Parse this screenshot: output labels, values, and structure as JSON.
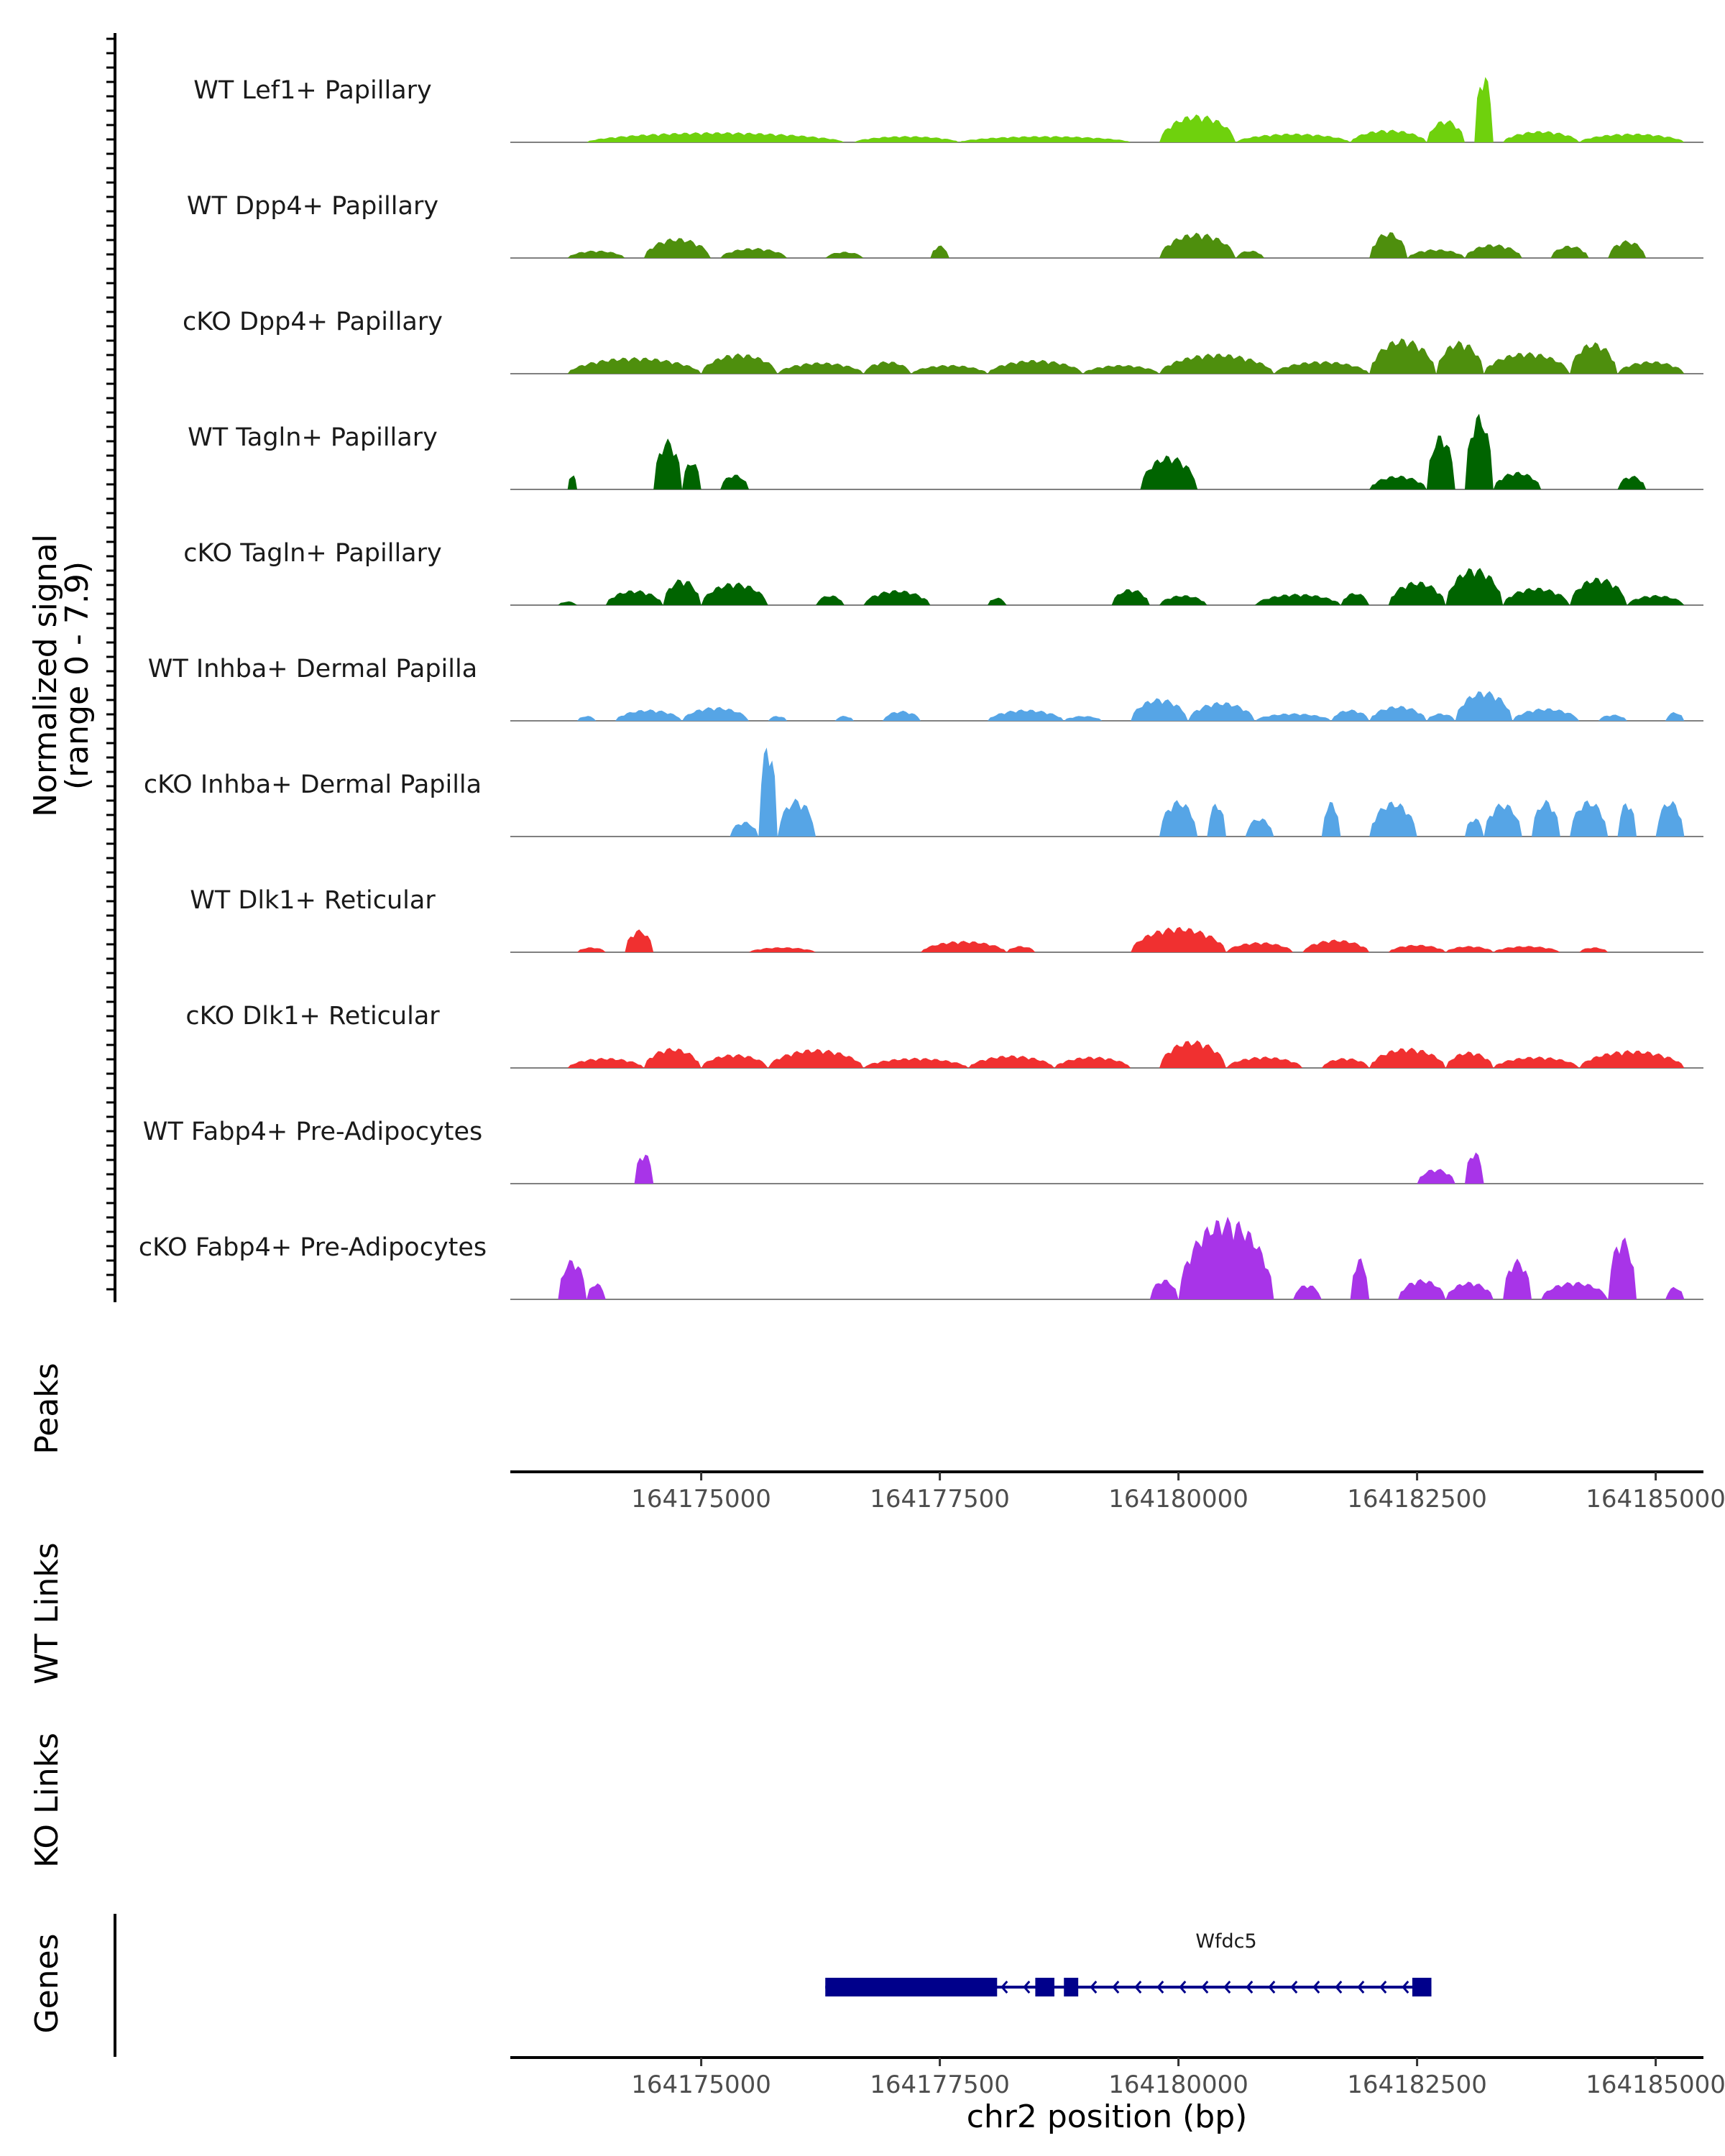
{
  "chart_data": {
    "type": "area",
    "region": "chr2",
    "y_axis_title": [
      "Normalized signal",
      "(range 0 - 7.9)"
    ],
    "ylim": [
      0,
      7.9
    ],
    "xlim": [
      164173000,
      164185500
    ],
    "x_ticks": [
      164175000,
      164177500,
      164180000,
      164182500,
      164185000
    ],
    "x_tick_labels": [
      "164175000",
      "164177500",
      "164180000",
      "164182500",
      "164185000"
    ],
    "x_label": "chr2 position (bp)",
    "series": [
      {
        "name": "WT Lef1+ Papillary",
        "color": "#6fd10d",
        "peaks": [
          [
            164173800,
            164176500,
            0.8
          ],
          [
            164176600,
            164177700,
            0.5
          ],
          [
            164177700,
            164179500,
            0.5
          ],
          [
            164179800,
            164180600,
            2.2
          ],
          [
            164180600,
            164181800,
            0.7
          ],
          [
            164181800,
            164182600,
            1.0
          ],
          [
            164182600,
            164183000,
            1.8
          ],
          [
            164183100,
            164183300,
            5.5
          ],
          [
            164183400,
            164184200,
            0.9
          ],
          [
            164184200,
            164185300,
            0.7
          ]
        ]
      },
      {
        "name": "WT Dpp4+ Papillary",
        "color": "#4e8f0d",
        "peaks": [
          [
            164173600,
            164174200,
            0.6
          ],
          [
            164174400,
            164175100,
            1.6
          ],
          [
            164175200,
            164175900,
            0.8
          ],
          [
            164176300,
            164176700,
            0.5
          ],
          [
            164177400,
            164177600,
            1.0
          ],
          [
            164179800,
            164180600,
            2.0
          ],
          [
            164180600,
            164180900,
            0.6
          ],
          [
            164182000,
            164182400,
            2.1
          ],
          [
            164182400,
            164183000,
            0.7
          ],
          [
            164183000,
            164183600,
            1.1
          ],
          [
            164183900,
            164184300,
            1.0
          ],
          [
            164184500,
            164184900,
            1.4
          ]
        ]
      },
      {
        "name": "cKO Dpp4+ Papillary",
        "color": "#4e8f0d",
        "peaks": [
          [
            164173600,
            164175000,
            1.3
          ],
          [
            164175000,
            164175800,
            1.6
          ],
          [
            164175800,
            164176700,
            0.9
          ],
          [
            164176700,
            164177200,
            1.0
          ],
          [
            164177200,
            164178000,
            0.7
          ],
          [
            164178000,
            164179000,
            1.1
          ],
          [
            164179000,
            164179800,
            0.7
          ],
          [
            164179800,
            164181000,
            1.6
          ],
          [
            164181000,
            164182000,
            1.0
          ],
          [
            164182000,
            164182700,
            2.8
          ],
          [
            164182700,
            164183200,
            2.6
          ],
          [
            164183200,
            164184100,
            1.7
          ],
          [
            164184100,
            164184600,
            2.5
          ],
          [
            164184600,
            164185300,
            1.0
          ]
        ]
      },
      {
        "name": "WT Tagln+ Papillary",
        "color": "#006400",
        "peaks": [
          [
            164173600,
            164173700,
            1.2
          ],
          [
            164174500,
            164174800,
            4.0
          ],
          [
            164174800,
            164175000,
            2.3
          ],
          [
            164175200,
            164175500,
            1.2
          ],
          [
            164179600,
            164180200,
            2.7
          ],
          [
            164182000,
            164182600,
            1.1
          ],
          [
            164182600,
            164182900,
            4.4
          ],
          [
            164183000,
            164183300,
            6.0
          ],
          [
            164183300,
            164183800,
            1.4
          ],
          [
            164184600,
            164184900,
            1.1
          ]
        ]
      },
      {
        "name": "cKO Tagln+ Papillary",
        "color": "#006400",
        "peaks": [
          [
            164173500,
            164173700,
            0.3
          ],
          [
            164174000,
            164174600,
            1.2
          ],
          [
            164174600,
            164175000,
            2.1
          ],
          [
            164175000,
            164175700,
            1.8
          ],
          [
            164176200,
            164176500,
            0.8
          ],
          [
            164176700,
            164177400,
            1.2
          ],
          [
            164178000,
            164178200,
            0.6
          ],
          [
            164179300,
            164179700,
            1.3
          ],
          [
            164179800,
            164180300,
            0.8
          ],
          [
            164180800,
            164181700,
            0.9
          ],
          [
            164181700,
            164182000,
            1.0
          ],
          [
            164182200,
            164182800,
            1.9
          ],
          [
            164182800,
            164183400,
            3.0
          ],
          [
            164183400,
            164184100,
            1.4
          ],
          [
            164184100,
            164184700,
            2.2
          ],
          [
            164184700,
            164185300,
            0.8
          ]
        ]
      },
      {
        "name": "WT Inhba+ Dermal Papilla",
        "color": "#56a5e6",
        "peaks": [
          [
            164173700,
            164173900,
            0.4
          ],
          [
            164174100,
            164174800,
            0.9
          ],
          [
            164174800,
            164175500,
            1.1
          ],
          [
            164175700,
            164175900,
            0.4
          ],
          [
            164176400,
            164176600,
            0.4
          ],
          [
            164176900,
            164177300,
            0.8
          ],
          [
            164178000,
            164178800,
            0.9
          ],
          [
            164178800,
            164179200,
            0.4
          ],
          [
            164179500,
            164180100,
            1.8
          ],
          [
            164180100,
            164180800,
            1.5
          ],
          [
            164180800,
            164181600,
            0.6
          ],
          [
            164181600,
            164182000,
            0.9
          ],
          [
            164182000,
            164182600,
            1.2
          ],
          [
            164182600,
            164182900,
            0.6
          ],
          [
            164182900,
            164183500,
            2.4
          ],
          [
            164183500,
            164184200,
            1.0
          ],
          [
            164184400,
            164184700,
            0.5
          ],
          [
            164185100,
            164185300,
            0.7
          ]
        ]
      },
      {
        "name": "cKO Inhba+ Dermal Papilla",
        "color": "#56a5e6",
        "peaks": [
          [
            164175300,
            164175600,
            1.2
          ],
          [
            164175600,
            164175800,
            7.5
          ],
          [
            164175800,
            164176200,
            3.0
          ],
          [
            164179800,
            164180200,
            2.9
          ],
          [
            164180300,
            164180500,
            2.7
          ],
          [
            164180700,
            164181000,
            1.5
          ],
          [
            164181500,
            164181700,
            2.8
          ],
          [
            164182000,
            164182500,
            2.8
          ],
          [
            164183000,
            164183200,
            1.5
          ],
          [
            164183200,
            164183600,
            2.7
          ],
          [
            164183700,
            164184000,
            2.9
          ],
          [
            164184100,
            164184500,
            2.9
          ],
          [
            164184600,
            164184800,
            2.8
          ],
          [
            164185000,
            164185300,
            2.9
          ]
        ]
      },
      {
        "name": "WT Dlk1+ Reticular",
        "color": "#f03030",
        "peaks": [
          [
            164173700,
            164174000,
            0.4
          ],
          [
            164174200,
            164174500,
            1.8
          ],
          [
            164175500,
            164176200,
            0.4
          ],
          [
            164177300,
            164178200,
            0.9
          ],
          [
            164178200,
            164178500,
            0.5
          ],
          [
            164179500,
            164180500,
            2.0
          ],
          [
            164180500,
            164181200,
            0.8
          ],
          [
            164181300,
            164182000,
            1.0
          ],
          [
            164182200,
            164182800,
            0.6
          ],
          [
            164182800,
            164183300,
            0.5
          ],
          [
            164183300,
            164184000,
            0.5
          ],
          [
            164184200,
            164184500,
            0.4
          ]
        ]
      },
      {
        "name": "cKO Dlk1+ Reticular",
        "color": "#f03030",
        "peaks": [
          [
            164173600,
            164174400,
            0.8
          ],
          [
            164174400,
            164175000,
            1.6
          ],
          [
            164175000,
            164175700,
            1.1
          ],
          [
            164175700,
            164176700,
            1.5
          ],
          [
            164176700,
            164177800,
            0.8
          ],
          [
            164177800,
            164178700,
            1.0
          ],
          [
            164178700,
            164179500,
            0.9
          ],
          [
            164179800,
            164180500,
            2.2
          ],
          [
            164180500,
            164181300,
            0.9
          ],
          [
            164181500,
            164182000,
            0.8
          ],
          [
            164182000,
            164182800,
            1.6
          ],
          [
            164182800,
            164183300,
            1.3
          ],
          [
            164183300,
            164184200,
            0.9
          ],
          [
            164184200,
            164185300,
            1.4
          ]
        ]
      },
      {
        "name": "WT Fabp4+ Pre-Adipocytes",
        "color": "#a834e8",
        "peaks": [
          [
            164174300,
            164174500,
            2.5
          ],
          [
            164182500,
            164182900,
            1.2
          ],
          [
            164183000,
            164183200,
            2.6
          ]
        ]
      },
      {
        "name": "cKO Fabp4+ Pre-Adipocytes",
        "color": "#a834e8",
        "peaks": [
          [
            164173500,
            164173800,
            3.2
          ],
          [
            164173800,
            164174000,
            1.3
          ],
          [
            164179700,
            164180000,
            1.6
          ],
          [
            164180000,
            164181000,
            6.5
          ],
          [
            164181200,
            164181500,
            1.2
          ],
          [
            164181800,
            164182000,
            3.3
          ],
          [
            164182300,
            164182800,
            1.6
          ],
          [
            164182800,
            164183300,
            1.4
          ],
          [
            164183400,
            164183700,
            3.2
          ],
          [
            164183800,
            164184500,
            1.4
          ],
          [
            164184500,
            164184800,
            5.0
          ],
          [
            164185100,
            164185300,
            1.0
          ]
        ]
      }
    ],
    "other_tracks": {
      "peaks_label": "Peaks",
      "wt_links_label": "WT Links",
      "ko_links_label": "KO Links",
      "genes_label": "Genes"
    },
    "genes": [
      {
        "name": "Wfdc5",
        "strand": "-",
        "start": 164176300,
        "end": 164182650,
        "color": "#00008b",
        "exons": [
          [
            164176300,
            164178100
          ],
          [
            164178500,
            164178700
          ],
          [
            164178800,
            164178950
          ],
          [
            164182450,
            164182650
          ]
        ]
      }
    ]
  }
}
